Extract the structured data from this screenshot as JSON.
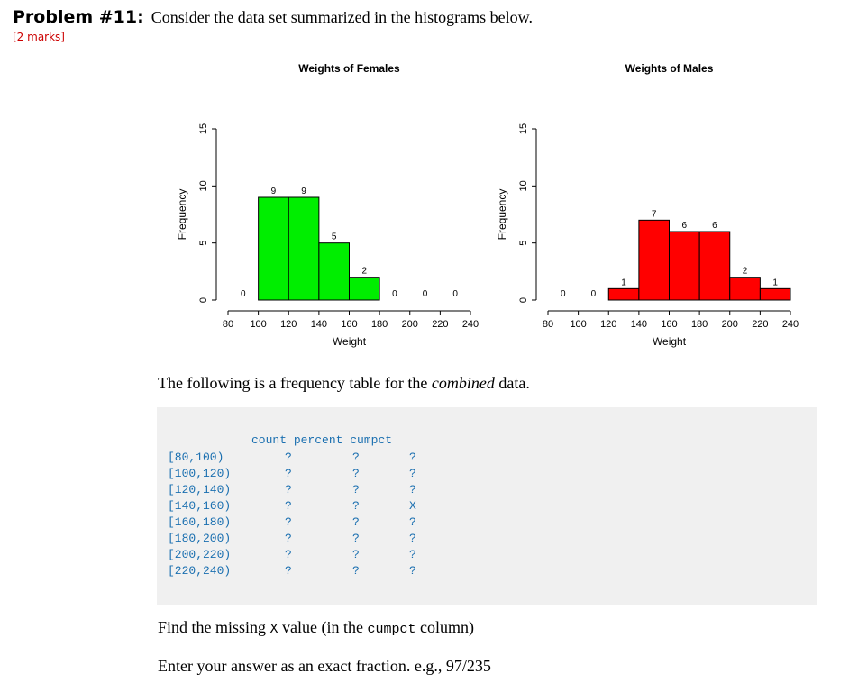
{
  "problem": {
    "title": "Problem #11:",
    "text": "Consider the data set summarized in the histograms below.",
    "marks": "[2 marks]"
  },
  "chart_data": [
    {
      "type": "bar",
      "title": "Weights of Females",
      "xlabel": "Weight",
      "ylabel": "Frequency",
      "bins": [
        [
          80,
          100
        ],
        [
          100,
          120
        ],
        [
          120,
          140
        ],
        [
          140,
          160
        ],
        [
          160,
          180
        ],
        [
          180,
          200
        ],
        [
          200,
          220
        ],
        [
          220,
          240
        ]
      ],
      "values": [
        0,
        9,
        9,
        5,
        2,
        0,
        0,
        0
      ],
      "labels": [
        "0",
        "9",
        "9",
        "5",
        "2",
        "0",
        "0",
        "0"
      ],
      "xticks": [
        "80",
        "100",
        "120",
        "140",
        "160",
        "180",
        "200",
        "220",
        "240"
      ],
      "yticks": [
        "0",
        "5",
        "10",
        "15"
      ],
      "ylim": [
        0,
        15
      ],
      "xlim": [
        80,
        240
      ],
      "color": "#00ee00",
      "grid": false
    },
    {
      "type": "bar",
      "title": "Weights of Males",
      "xlabel": "Weight",
      "ylabel": "Frequency",
      "bins": [
        [
          80,
          100
        ],
        [
          100,
          120
        ],
        [
          120,
          140
        ],
        [
          140,
          160
        ],
        [
          160,
          180
        ],
        [
          180,
          200
        ],
        [
          200,
          220
        ],
        [
          220,
          240
        ]
      ],
      "values": [
        0,
        0,
        1,
        7,
        6,
        6,
        2,
        1
      ],
      "labels": [
        "0",
        "0",
        "1",
        "7",
        "6",
        "6",
        "2",
        "1"
      ],
      "xticks": [
        "80",
        "100",
        "120",
        "140",
        "160",
        "180",
        "200",
        "220",
        "240"
      ],
      "yticks": [
        "0",
        "5",
        "10",
        "15"
      ],
      "ylim": [
        0,
        15
      ],
      "xlim": [
        80,
        240
      ],
      "color": "#ff0000",
      "grid": false
    }
  ],
  "intro": {
    "before": "The following is a frequency table for the ",
    "emph": "combined",
    "after": " data."
  },
  "table": {
    "headers": [
      "count",
      "percent",
      "cumpct"
    ],
    "rows": [
      {
        "interval": "[80,100)",
        "count": "?",
        "percent": "?",
        "cumpct": "?"
      },
      {
        "interval": "[100,120)",
        "count": "?",
        "percent": "?",
        "cumpct": "?"
      },
      {
        "interval": "[120,140)",
        "count": "?",
        "percent": "?",
        "cumpct": "?"
      },
      {
        "interval": "[140,160)",
        "count": "?",
        "percent": "?",
        "cumpct": "X"
      },
      {
        "interval": "[160,180)",
        "count": "?",
        "percent": "?",
        "cumpct": "?"
      },
      {
        "interval": "[180,200)",
        "count": "?",
        "percent": "?",
        "cumpct": "?"
      },
      {
        "interval": "[200,220)",
        "count": "?",
        "percent": "?",
        "cumpct": "?"
      },
      {
        "interval": "[220,240)",
        "count": "?",
        "percent": "?",
        "cumpct": "?"
      }
    ]
  },
  "question": {
    "part1": "Find the missing ",
    "code1": "X",
    "part2": " value (in the ",
    "code2": "cumpct",
    "part3": " column)",
    "answer_prompt": "Enter your answer as an exact fraction. e.g., 97/235"
  }
}
